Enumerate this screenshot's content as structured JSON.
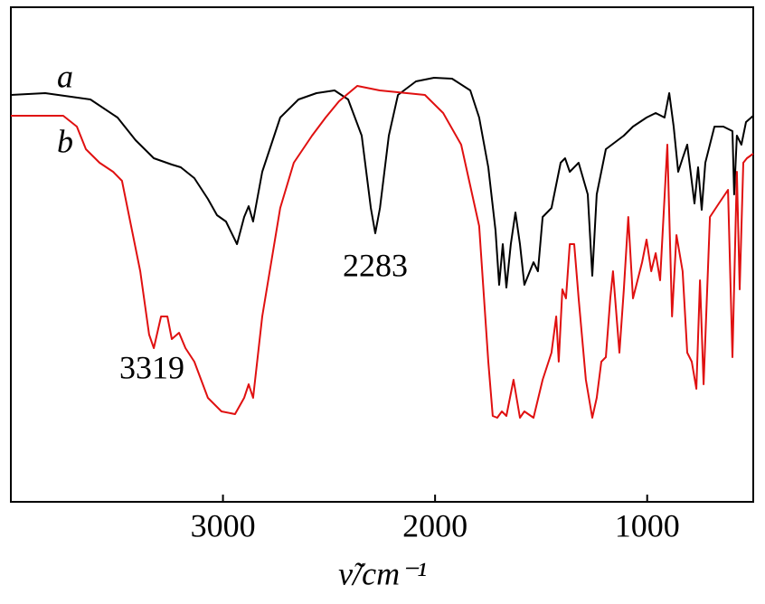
{
  "chart_data": {
    "type": "line",
    "xlabel": "ν̃/cm⁻¹",
    "xlim": [
      4000,
      500
    ],
    "xticks": [
      3000,
      2000,
      1000
    ],
    "ylim": [
      0,
      547
    ],
    "annotations": [
      "2283",
      "3319"
    ],
    "series": [
      {
        "name": "a",
        "color": "#000000",
        "x": [
          4000,
          3838,
          3625,
          3497,
          3412,
          3326,
          3241,
          3199,
          3135,
          3071,
          3028,
          2986,
          2934,
          2900,
          2879,
          2858,
          2815,
          2730,
          2644,
          2559,
          2474,
          2410,
          2346,
          2303,
          2282,
          2260,
          2218,
          2175,
          2090,
          2005,
          1920,
          1834,
          1792,
          1749,
          1715,
          1698,
          1681,
          1664,
          1643,
          1621,
          1600,
          1579,
          1536,
          1515,
          1493,
          1451,
          1408,
          1387,
          1365,
          1323,
          1280,
          1259,
          1238,
          1195,
          1110,
          1067,
          1003,
          960,
          918,
          896,
          875,
          854,
          833,
          811,
          777,
          760,
          743,
          726,
          683,
          641,
          598,
          590,
          577,
          556,
          534,
          500
        ],
        "values": [
          450,
          452,
          445,
          425,
          400,
          380,
          373,
          370,
          358,
          335,
          317,
          310,
          285,
          315,
          327,
          310,
          365,
          425,
          445,
          452,
          455,
          445,
          405,
          325,
          297,
          325,
          405,
          450,
          465,
          469,
          468,
          455,
          425,
          370,
          300,
          240,
          285,
          237,
          285,
          320,
          285,
          240,
          265,
          255,
          315,
          325,
          375,
          380,
          365,
          375,
          340,
          250,
          340,
          390,
          405,
          415,
          425,
          430,
          425,
          452,
          415,
          365,
          380,
          395,
          330,
          370,
          323,
          375,
          415,
          415,
          410,
          340,
          405,
          395,
          420,
          427
        ]
      },
      {
        "name": "b",
        "color": "#e01010",
        "x": [
          4000,
          3881,
          3753,
          3689,
          3646,
          3582,
          3518,
          3476,
          3433,
          3390,
          3348,
          3326,
          3292,
          3262,
          3241,
          3207,
          3177,
          3135,
          3071,
          3007,
          2943,
          2900,
          2879,
          2858,
          2815,
          2730,
          2666,
          2580,
          2516,
          2453,
          2367,
          2261,
          2133,
          2048,
          1962,
          1877,
          1792,
          1749,
          1728,
          1707,
          1685,
          1664,
          1630,
          1600,
          1579,
          1536,
          1493,
          1451,
          1429,
          1417,
          1400,
          1383,
          1365,
          1344,
          1323,
          1289,
          1259,
          1238,
          1216,
          1195,
          1174,
          1161,
          1131,
          1110,
          1089,
          1067,
          1024,
          1003,
          981,
          960,
          939,
          905,
          883,
          862,
          833,
          811,
          790,
          768,
          751,
          734,
          704,
          662,
          619,
          598,
          577,
          564,
          547,
          530,
          500
        ],
        "values": [
          427,
          427,
          427,
          415,
          390,
          375,
          365,
          355,
          305,
          255,
          185,
          170,
          205,
          205,
          180,
          187,
          170,
          155,
          115,
          100,
          97,
          115,
          130,
          115,
          205,
          325,
          375,
          405,
          425,
          443,
          460,
          455,
          452,
          450,
          430,
          395,
          305,
          155,
          95,
          93,
          100,
          95,
          135,
          93,
          100,
          93,
          135,
          165,
          205,
          155,
          235,
          225,
          285,
          285,
          225,
          135,
          93,
          115,
          155,
          160,
          225,
          255,
          165,
          235,
          315,
          225,
          265,
          290,
          255,
          275,
          245,
          395,
          205,
          295,
          255,
          165,
          155,
          125,
          245,
          130,
          315,
          330,
          345,
          160,
          365,
          235,
          375,
          380,
          385
        ]
      }
    ]
  }
}
